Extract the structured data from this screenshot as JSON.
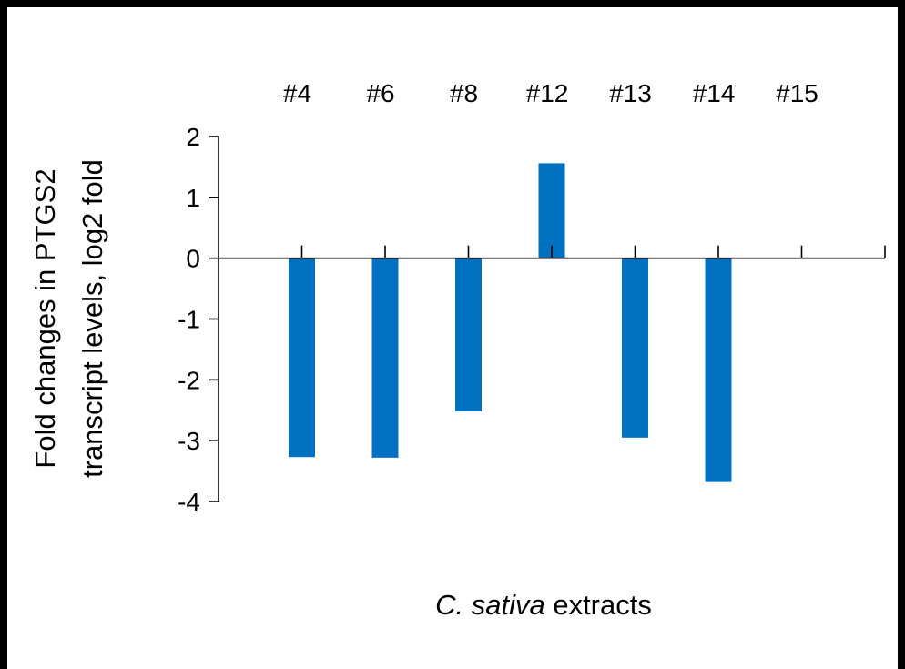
{
  "chart_data": {
    "type": "bar",
    "categories": [
      "#4",
      "#6",
      "#8",
      "#12",
      "#13",
      "#14",
      "#15"
    ],
    "values": [
      -3.27,
      -3.28,
      -2.52,
      1.56,
      -2.95,
      -3.68,
      0
    ],
    "ylabel_line1": "Fold changes in PTGS2",
    "ylabel_line2": "transcript levels, log2 fold",
    "xlabel_italic": "C. sativa",
    "xlabel_rest": " extracts",
    "ylim": [
      -4,
      2
    ],
    "yticks": [
      "2",
      "1",
      "0",
      "-1",
      "-2",
      "-3",
      "-4"
    ],
    "category_label_position": "top",
    "grid": false,
    "bar_color": "#0070C0",
    "axis_color": "#000000"
  }
}
